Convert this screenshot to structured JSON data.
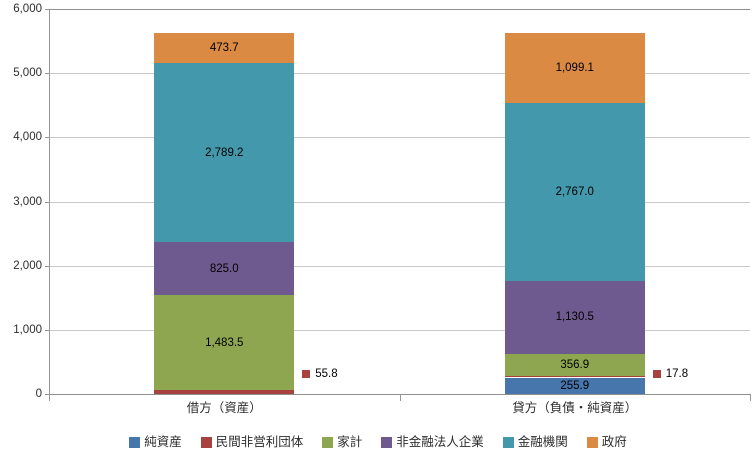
{
  "chart_data": {
    "type": "bar",
    "stacked": true,
    "title": "",
    "xlabel": "",
    "ylabel": "",
    "categories": [
      "借方（資産）",
      "貸方（負債・純資産）"
    ],
    "series": [
      {
        "name": "純資産",
        "color": "#4676AC",
        "values": [
          0,
          255.9
        ]
      },
      {
        "name": "民間非営利団体",
        "color": "#A8423E",
        "values": [
          55.8,
          17.8
        ]
      },
      {
        "name": "家計",
        "color": "#8EA650",
        "values": [
          1483.5,
          356.9
        ]
      },
      {
        "name": "非金融法人企業",
        "color": "#6F5A8F",
        "values": [
          825.0,
          1130.5
        ]
      },
      {
        "name": "金融機関",
        "color": "#4398AC",
        "values": [
          2789.2,
          2767.0
        ]
      },
      {
        "name": "政府",
        "color": "#DB8A44",
        "values": [
          473.7,
          1099.1
        ]
      }
    ],
    "ylim": [
      0,
      6000
    ],
    "ytick_step": 1000,
    "ytick_labels": [
      "0",
      "1,000",
      "2,000",
      "3,000",
      "4,000",
      "5,000",
      "6,000"
    ],
    "grid": true,
    "legend_position": "bottom",
    "legend": [
      "純資産",
      "民間非営利団体",
      "家計",
      "非金融法人企業",
      "金融機関",
      "政府"
    ],
    "data_labels": {
      "inside_examples": [
        "473.7",
        "2,789.2",
        "825.0",
        "1,483.5",
        "1,099.1",
        "2,767.0",
        "1,130.5",
        "356.9",
        "255.9"
      ],
      "outside": [
        {
          "category_index": 0,
          "series": "民間非営利団体",
          "text": "55.8"
        },
        {
          "category_index": 1,
          "series": "民間非営利団体",
          "text": "17.8"
        }
      ]
    },
    "colors": {
      "gridline": "#C9C9C9",
      "axis": "#969696",
      "label_text": "#000000"
    }
  }
}
